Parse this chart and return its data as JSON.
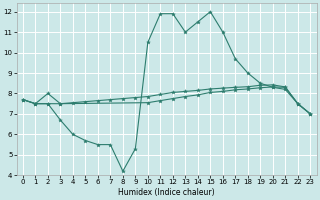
{
  "xlabel": "Humidex (Indice chaleur)",
  "ylabel": "",
  "bg_color": "#cce8e8",
  "grid_color": "#ffffff",
  "line_color": "#2d7d6e",
  "xlim": [
    -0.5,
    23.5
  ],
  "ylim": [
    4,
    12.4
  ],
  "xticks": [
    0,
    1,
    2,
    3,
    4,
    5,
    6,
    7,
    8,
    9,
    10,
    11,
    12,
    13,
    14,
    15,
    16,
    17,
    18,
    19,
    20,
    21,
    22,
    23
  ],
  "yticks": [
    4,
    5,
    6,
    7,
    8,
    9,
    10,
    11,
    12
  ],
  "line1_x": [
    0,
    1,
    2,
    3,
    10,
    11,
    12,
    13,
    14,
    15,
    16,
    17,
    18,
    19,
    20,
    21,
    22,
    23
  ],
  "line1_y": [
    7.7,
    7.5,
    7.5,
    7.5,
    7.55,
    7.65,
    7.75,
    7.85,
    7.93,
    8.05,
    8.1,
    8.18,
    8.22,
    8.28,
    8.32,
    8.3,
    7.5,
    7.0
  ],
  "line2_x": [
    0,
    1,
    2,
    3,
    4,
    5,
    6,
    7,
    8,
    9,
    10,
    11,
    12,
    13,
    14,
    15,
    16,
    17,
    18,
    19,
    20,
    21,
    22,
    23
  ],
  "line2_y": [
    7.7,
    7.5,
    8.0,
    7.5,
    7.55,
    7.6,
    7.65,
    7.7,
    7.75,
    7.8,
    7.85,
    7.95,
    8.05,
    8.1,
    8.15,
    8.22,
    8.26,
    8.3,
    8.33,
    8.4,
    8.42,
    8.32,
    7.5,
    7.0
  ],
  "line3_x": [
    0,
    1,
    2,
    3,
    4,
    5,
    6,
    7,
    8,
    9,
    10,
    11,
    12,
    13,
    14,
    15,
    16,
    17,
    18,
    19,
    20,
    21,
    22,
    23
  ],
  "line3_y": [
    7.7,
    7.5,
    7.5,
    6.7,
    6.0,
    5.7,
    5.5,
    5.5,
    4.2,
    5.3,
    10.5,
    11.9,
    11.9,
    11.0,
    11.5,
    12.0,
    11.0,
    9.7,
    9.0,
    8.5,
    8.3,
    8.2,
    7.5,
    7.0
  ]
}
